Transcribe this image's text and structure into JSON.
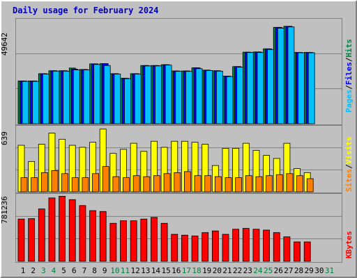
{
  "chart_data": {
    "type": "bar",
    "title": "Daily usage for February 2024",
    "categories": [
      "1",
      "2",
      "3",
      "4",
      "5",
      "6",
      "7",
      "8",
      "9",
      "10",
      "11",
      "12",
      "13",
      "14",
      "15",
      "16",
      "17",
      "18",
      "19",
      "20",
      "21",
      "22",
      "23",
      "24",
      "25",
      "26",
      "27",
      "28",
      "29",
      "30",
      "31"
    ],
    "weekend_days": [
      "3",
      "4",
      "10",
      "11",
      "17",
      "18",
      "24",
      "25",
      "31"
    ],
    "panels": [
      {
        "name": "hits-files-pages",
        "ymax_label": "49642",
        "ylim": [
          0,
          49642
        ],
        "legend": [
          "Pages",
          "/",
          "Files",
          "/",
          "Hits"
        ],
        "series": [
          {
            "name": "Hits",
            "color": "#008040",
            "values": [
              20500,
              20500,
              24000,
              25400,
              25400,
              26700,
              26000,
              28700,
              28800,
              24000,
              21800,
              24000,
              27900,
              27900,
              28300,
              25300,
              25300,
              26800,
              25700,
              25400,
              22800,
              27400,
              34300,
              34400,
              35900,
              46200,
              46700,
              34200,
              34200,
              0,
              0
            ]
          },
          {
            "name": "Files",
            "color": "#0000ff",
            "values": [
              20500,
              20500,
              24000,
              25400,
              25400,
              26200,
              26000,
              28700,
              28800,
              24000,
              21800,
              24000,
              27900,
              27900,
              28300,
              25300,
              25300,
              26800,
              25700,
              25400,
              22800,
              27400,
              34300,
              34400,
              35900,
              46200,
              46700,
              34200,
              34200,
              0,
              0
            ]
          },
          {
            "name": "Pages",
            "color": "#00c0ff",
            "values": [
              20300,
              20300,
              23800,
              25200,
              25200,
              25800,
              25800,
              28400,
              27900,
              23800,
              21600,
              23800,
              27700,
              27700,
              28100,
              25100,
              25100,
              26400,
              25500,
              25200,
              22600,
              27100,
              34100,
              34100,
              35600,
              45800,
              46400,
              34000,
              34000,
              0,
              0
            ]
          }
        ]
      },
      {
        "name": "visits-sites",
        "ymax_label": "639",
        "ylim": [
          0,
          639
        ],
        "legend": [
          "Sites",
          "/",
          "Visits"
        ],
        "series": [
          {
            "name": "Visits",
            "color": "#ffff00",
            "values": [
              460,
              300,
              470,
              580,
              520,
              460,
              440,
              490,
              620,
              380,
              420,
              480,
              400,
              500,
              440,
              500,
              500,
              490,
              470,
              260,
              430,
              430,
              480,
              410,
              360,
              330,
              480,
              230,
              190,
              0,
              0
            ]
          },
          {
            "name": "Sites",
            "color": "#ff8000",
            "values": [
              140,
              140,
              190,
              210,
              180,
              140,
              140,
              180,
              250,
              150,
              140,
              160,
              150,
              160,
              180,
              190,
              200,
              160,
              160,
              150,
              140,
              140,
              160,
              150,
              160,
              170,
              180,
              160,
              130,
              0,
              0
            ]
          }
        ]
      },
      {
        "name": "kbytes",
        "ymax_label": "781236",
        "ylim": [
          0,
          781236
        ],
        "legend": [
          "KBytes"
        ],
        "series": [
          {
            "name": "KBytes",
            "color": "#ff0000",
            "values": [
              500000,
              505000,
              620000,
              750000,
              770000,
              730000,
              660000,
              600000,
              590000,
              450000,
              480000,
              480000,
              500000,
              520000,
              450000,
              320000,
              310000,
              300000,
              340000,
              360000,
              320000,
              380000,
              390000,
              380000,
              370000,
              340000,
              290000,
              230000,
              230000,
              0,
              0
            ]
          }
        ]
      }
    ]
  }
}
